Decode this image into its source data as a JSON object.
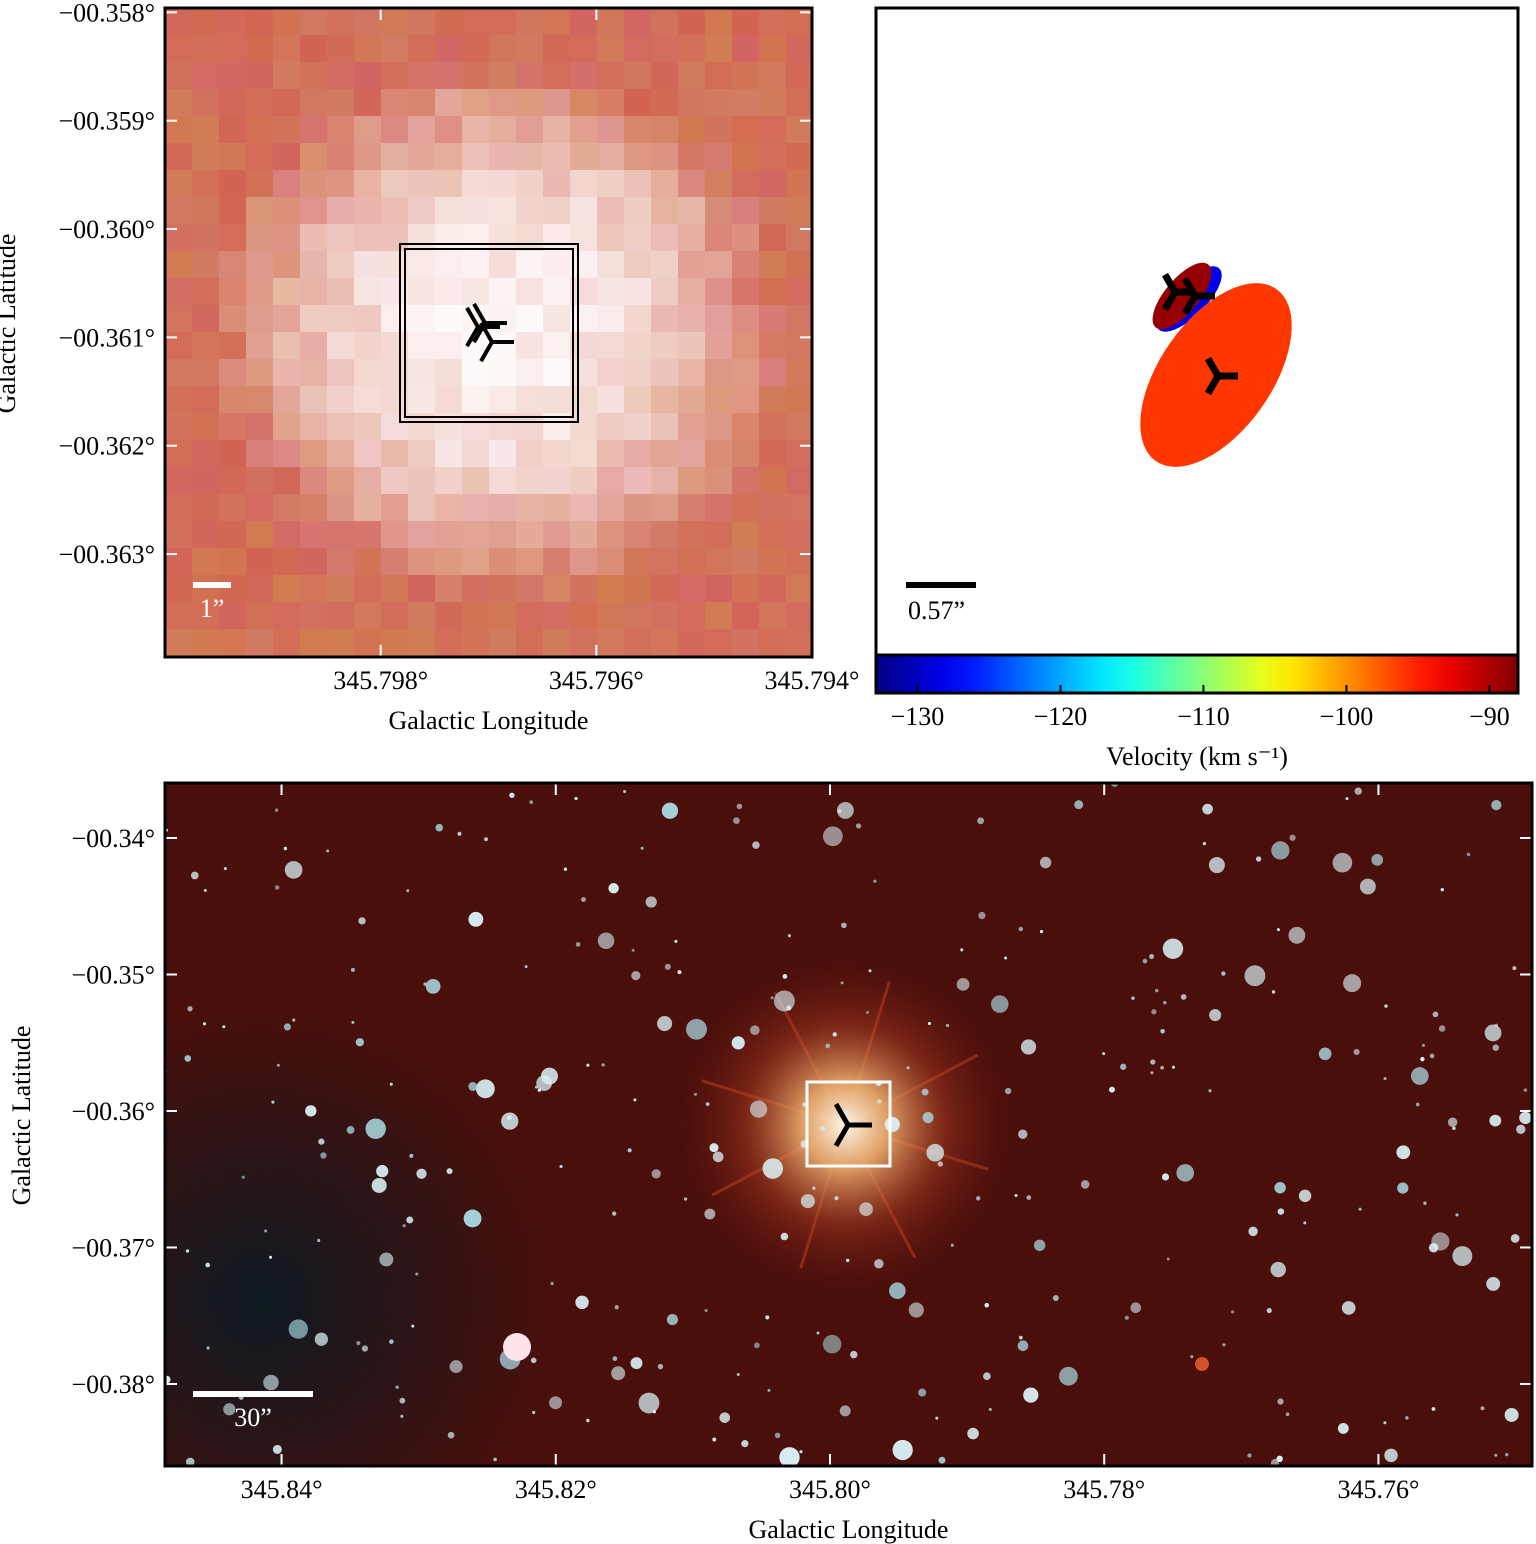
{
  "chart_data": [
    {
      "type": "image",
      "xlabel": "Galactic Longitude",
      "ylabel": "Galactic Latitude",
      "xlim": [
        345.8,
        345.794
      ],
      "ylim": [
        -0.36395,
        -0.35796
      ],
      "xticks": [
        {
          "value": 345.798,
          "label": "345.798°"
        },
        {
          "value": 345.796,
          "label": "345.796°"
        },
        {
          "value": 345.794,
          "label": "345.794°"
        }
      ],
      "yticks": [
        {
          "value": -0.358,
          "label": "−00.358°"
        },
        {
          "value": -0.359,
          "label": "−00.359°"
        },
        {
          "value": -0.36,
          "label": "−00.360°"
        },
        {
          "value": -0.361,
          "label": "−00.361°"
        },
        {
          "value": -0.362,
          "label": "−00.362°"
        },
        {
          "value": -0.363,
          "label": "−00.363°"
        }
      ],
      "scale_bar": "1”"
    },
    {
      "type": "ellipse",
      "values": [
        -89,
        -128,
        -96
      ],
      "clim": [
        -132.9,
        -88.0
      ],
      "cticks": [
        {
          "value": -130,
          "label": "−130"
        },
        {
          "value": -120,
          "label": "−120"
        },
        {
          "value": -110,
          "label": "−110"
        },
        {
          "value": -100,
          "label": "−100"
        },
        {
          "value": -90,
          "label": "−90"
        }
      ],
      "clabel": "Velocity (km s⁻¹)",
      "scale_bar": "0.57”"
    },
    {
      "type": "image",
      "xlabel": "Galactic Longitude",
      "ylabel": "Galactic Latitude",
      "xlim": [
        345.8485,
        345.7488
      ],
      "ylim": [
        -0.38601,
        -0.33597
      ],
      "xticks": [
        {
          "value": 345.84,
          "label": "345.84°"
        },
        {
          "value": 345.82,
          "label": "345.82°"
        },
        {
          "value": 345.8,
          "label": "345.80°"
        },
        {
          "value": 345.78,
          "label": "345.78°"
        },
        {
          "value": 345.76,
          "label": "345.76°"
        }
      ],
      "yticks": [
        {
          "value": -0.34,
          "label": "−00.34°"
        },
        {
          "value": -0.35,
          "label": "−00.35°"
        },
        {
          "value": -0.36,
          "label": "−00.36°"
        },
        {
          "value": -0.37,
          "label": "−00.37°"
        },
        {
          "value": -0.38,
          "label": "−00.38°"
        }
      ],
      "scale_bar": "30”"
    }
  ]
}
